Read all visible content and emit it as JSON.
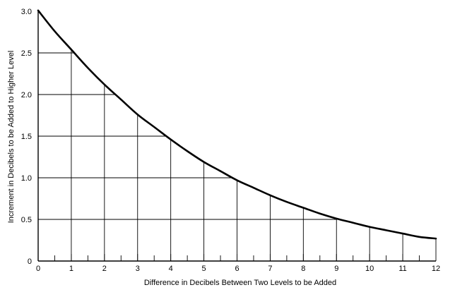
{
  "chart_data": {
    "type": "line",
    "title": "",
    "xlabel": "Difference in Decibels Between Two Levels to be Added",
    "ylabel": "Increment in Decibels to be Added to Higher Level",
    "xlim": [
      0,
      12
    ],
    "ylim": [
      0,
      3.0
    ],
    "x_ticks": [
      "0",
      "1",
      "2",
      "3",
      "4",
      "5",
      "6",
      "7",
      "8",
      "9",
      "10",
      "11",
      "12"
    ],
    "y_ticks": [
      "0",
      "0.5",
      "1.0",
      "1.5",
      "2.0",
      "2.5",
      "3.0"
    ],
    "minor_x_ticks_every": 0.5,
    "grid": "drop lines from integer x values up to the curve and across to the y axis",
    "x": [
      0,
      0.5,
      1,
      1.5,
      2,
      2.5,
      3,
      3.5,
      4,
      4.5,
      5,
      5.5,
      6,
      6.5,
      7,
      7.5,
      8,
      8.5,
      9,
      9.5,
      10,
      10.5,
      11,
      11.5,
      12
    ],
    "y": [
      3.01,
      2.76,
      2.54,
      2.32,
      2.12,
      1.94,
      1.76,
      1.61,
      1.46,
      1.32,
      1.19,
      1.08,
      0.97,
      0.88,
      0.79,
      0.71,
      0.64,
      0.57,
      0.51,
      0.46,
      0.41,
      0.37,
      0.33,
      0.29,
      0.27
    ]
  }
}
